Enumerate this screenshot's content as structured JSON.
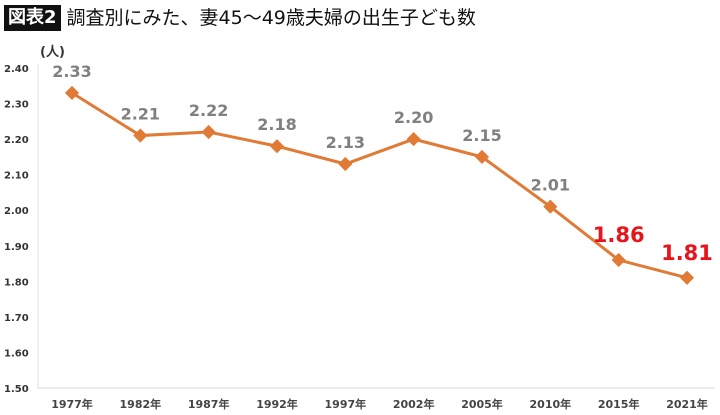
{
  "title_badge": "図表2",
  "title": "調査別にみた、妻45〜49歳夫婦の出生子ども数",
  "chart_data": {
    "type": "line",
    "title": "調査別にみた、妻45〜49歳夫婦の出生子ども数",
    "ylabel": "(人)",
    "xlabel": "",
    "categories": [
      "1977年",
      "1982年",
      "1987年",
      "1992年",
      "1997年",
      "2002年",
      "2005年",
      "2010年",
      "2015年",
      "2021年"
    ],
    "values": [
      2.33,
      2.21,
      2.22,
      2.18,
      2.13,
      2.2,
      2.15,
      2.01,
      1.86,
      1.81
    ],
    "data_labels": [
      "2.33",
      "2.21",
      "2.22",
      "2.18",
      "2.13",
      "2.20",
      "2.15",
      "2.01",
      "1.86",
      "1.81"
    ],
    "highlighted": [
      "2015年",
      "2021年"
    ],
    "ylim": [
      1.5,
      2.4
    ],
    "yticks": [
      "1.50",
      "1.60",
      "1.70",
      "1.80",
      "1.90",
      "2.00",
      "2.10",
      "2.20",
      "2.30",
      "2.40"
    ],
    "grid": false,
    "line_color": "#e07a35",
    "label_color": "#808080",
    "highlight_color": "#e8141c"
  }
}
